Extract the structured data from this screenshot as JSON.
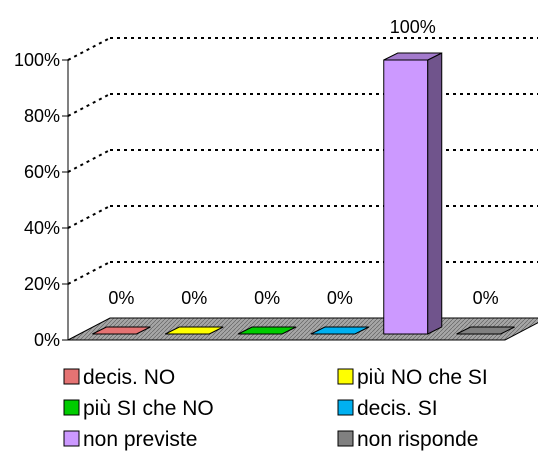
{
  "chart_data": {
    "type": "bar",
    "categories": [
      "decis. NO",
      "più NO che SI",
      "più SI che NO",
      "decis. SI",
      "non previste",
      "non risponde"
    ],
    "values": [
      0,
      0,
      0,
      0,
      100,
      0
    ],
    "data_labels": [
      "0%",
      "0%",
      "0%",
      "0%",
      "100%",
      "0%"
    ],
    "colors": [
      "#e57373",
      "#ffff00",
      "#00cc00",
      "#00b0f0",
      "#cc99ff",
      "#808080"
    ],
    "ylim": [
      0,
      100
    ],
    "yticks": [
      0,
      20,
      40,
      60,
      80,
      100
    ],
    "ytick_labels": [
      "0%",
      "20%",
      "40%",
      "60%",
      "80%",
      "100%"
    ],
    "grid": true,
    "legend_position": "bottom"
  }
}
